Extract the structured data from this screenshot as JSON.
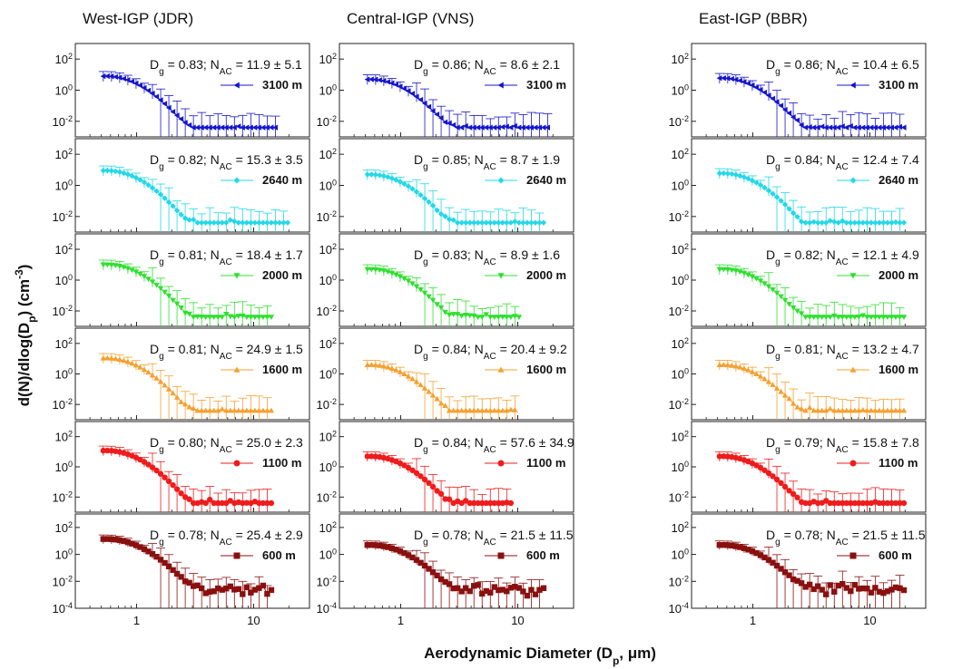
{
  "labels": {
    "xlabel": "Aerodynamic Diameter (D",
    "xlabel_sub": "p",
    "xlabel_tail": ", μm)",
    "ylabel": "d(N)/dlog(D",
    "ylabel_sub": "p",
    "ylabel_mid": ") (cm",
    "ylabel_sup": "-3",
    "ylabel_tail": ")",
    "dg_prefix": "D",
    "dg_sub": "g",
    "nac_prefix": "N",
    "nac_sub": "AC"
  },
  "chart_data": {
    "type": "scatter",
    "xscale": "log",
    "yscale": "log",
    "xlim": [
      0.3,
      30
    ],
    "x_ticks": [
      1,
      10
    ],
    "y_ticks": [
      0.0001,
      0.01,
      1,
      100
    ],
    "columns": [
      {
        "title": "West-IGP (JDR)"
      },
      {
        "title": "Central-IGP (VNS)"
      },
      {
        "title": "East-IGP (BBR)"
      }
    ],
    "rows": [
      {
        "altitude": "3100 m",
        "color": "#1515cc",
        "marker": "triangle-left",
        "ylim": [
          0.001,
          1000
        ],
        "tick_labels": [
          "10-2",
          "100",
          "102"
        ]
      },
      {
        "altitude": "2640 m",
        "color": "#22d8e8",
        "marker": "diamond",
        "ylim": [
          0.001,
          1000
        ],
        "tick_labels": [
          "10-2",
          "100",
          "102"
        ]
      },
      {
        "altitude": "2000 m",
        "color": "#2ee02e",
        "marker": "triangle-down",
        "ylim": [
          0.001,
          1000
        ],
        "tick_labels": [
          "10-2",
          "100",
          "102"
        ]
      },
      {
        "altitude": "1600 m",
        "color": "#f5a030",
        "marker": "triangle-up",
        "ylim": [
          0.001,
          1000
        ],
        "tick_labels": [
          "10-2",
          "100",
          "102"
        ]
      },
      {
        "altitude": "1100 m",
        "color": "#ee1c1c",
        "marker": "circle",
        "ylim": [
          0.001,
          1000
        ],
        "tick_labels": [
          "10-2",
          "100",
          "102"
        ]
      },
      {
        "altitude": "600 m",
        "color": "#8a1010",
        "marker": "square",
        "ylim": [
          0.0001,
          1000
        ],
        "tick_labels": [
          "10-4",
          "10-2",
          "100",
          "102"
        ]
      }
    ],
    "panels": [
      {
        "col": 0,
        "row": 0,
        "dg": "0.83",
        "nac": "11.9 ± 5.1",
        "dmax": 15.5,
        "peak": 8
      },
      {
        "col": 0,
        "row": 1,
        "dg": "0.82",
        "nac": "15.3 ± 3.5",
        "dmax": 20,
        "peak": 9
      },
      {
        "col": 0,
        "row": 2,
        "dg": "0.81",
        "nac": "18.4 ± 1.7",
        "dmax": 15,
        "peak": 10
      },
      {
        "col": 0,
        "row": 3,
        "dg": "0.81",
        "nac": "24.9 ± 1.5",
        "dmax": 15,
        "peak": 11
      },
      {
        "col": 0,
        "row": 4,
        "dg": "0.80",
        "nac": "25.0 ± 2.3",
        "dmax": 15,
        "peak": 12
      },
      {
        "col": 0,
        "row": 5,
        "dg": "0.78",
        "nac": "25.4 ± 2.9",
        "dmax": 15,
        "peak": 14
      },
      {
        "col": 1,
        "row": 0,
        "dg": "0.86",
        "nac": "8.6 ± 2.1",
        "dmax": 19,
        "peak": 5
      },
      {
        "col": 1,
        "row": 1,
        "dg": "0.85",
        "nac": "8.7 ± 1.9",
        "dmax": 18,
        "peak": 5
      },
      {
        "col": 1,
        "row": 2,
        "dg": "0.83",
        "nac": "8.9 ± 1.6",
        "dmax": 11,
        "peak": 5
      },
      {
        "col": 1,
        "row": 3,
        "dg": "0.84",
        "nac": "20.4 ± 9.2",
        "dmax": 10,
        "peak": 4
      },
      {
        "col": 1,
        "row": 4,
        "dg": "0.84",
        "nac": "57.6 ± 34.9",
        "dmax": 9,
        "peak": 5
      },
      {
        "col": 1,
        "row": 5,
        "dg": "0.78",
        "nac": "21.5 ± 11.5",
        "dmax": 18,
        "peak": 5
      },
      {
        "col": 2,
        "row": 0,
        "dg": "0.86",
        "nac": "10.4 ± 6.5",
        "dmax": 20,
        "peak": 6
      },
      {
        "col": 2,
        "row": 1,
        "dg": "0.84",
        "nac": "12.4 ± 7.4",
        "dmax": 20,
        "peak": 6
      },
      {
        "col": 2,
        "row": 2,
        "dg": "0.82",
        "nac": "12.1 ± 4.9",
        "dmax": 20,
        "peak": 5
      },
      {
        "col": 2,
        "row": 3,
        "dg": "0.81",
        "nac": "13.2 ± 4.7",
        "dmax": 20,
        "peak": 4
      },
      {
        "col": 2,
        "row": 4,
        "dg": "0.79",
        "nac": "15.8 ± 7.8",
        "dmax": 20,
        "peak": 5
      },
      {
        "col": 2,
        "row": 5,
        "dg": "0.78",
        "nac": "21.5 ± 11.5",
        "dmax": 20,
        "peak": 5
      }
    ]
  }
}
